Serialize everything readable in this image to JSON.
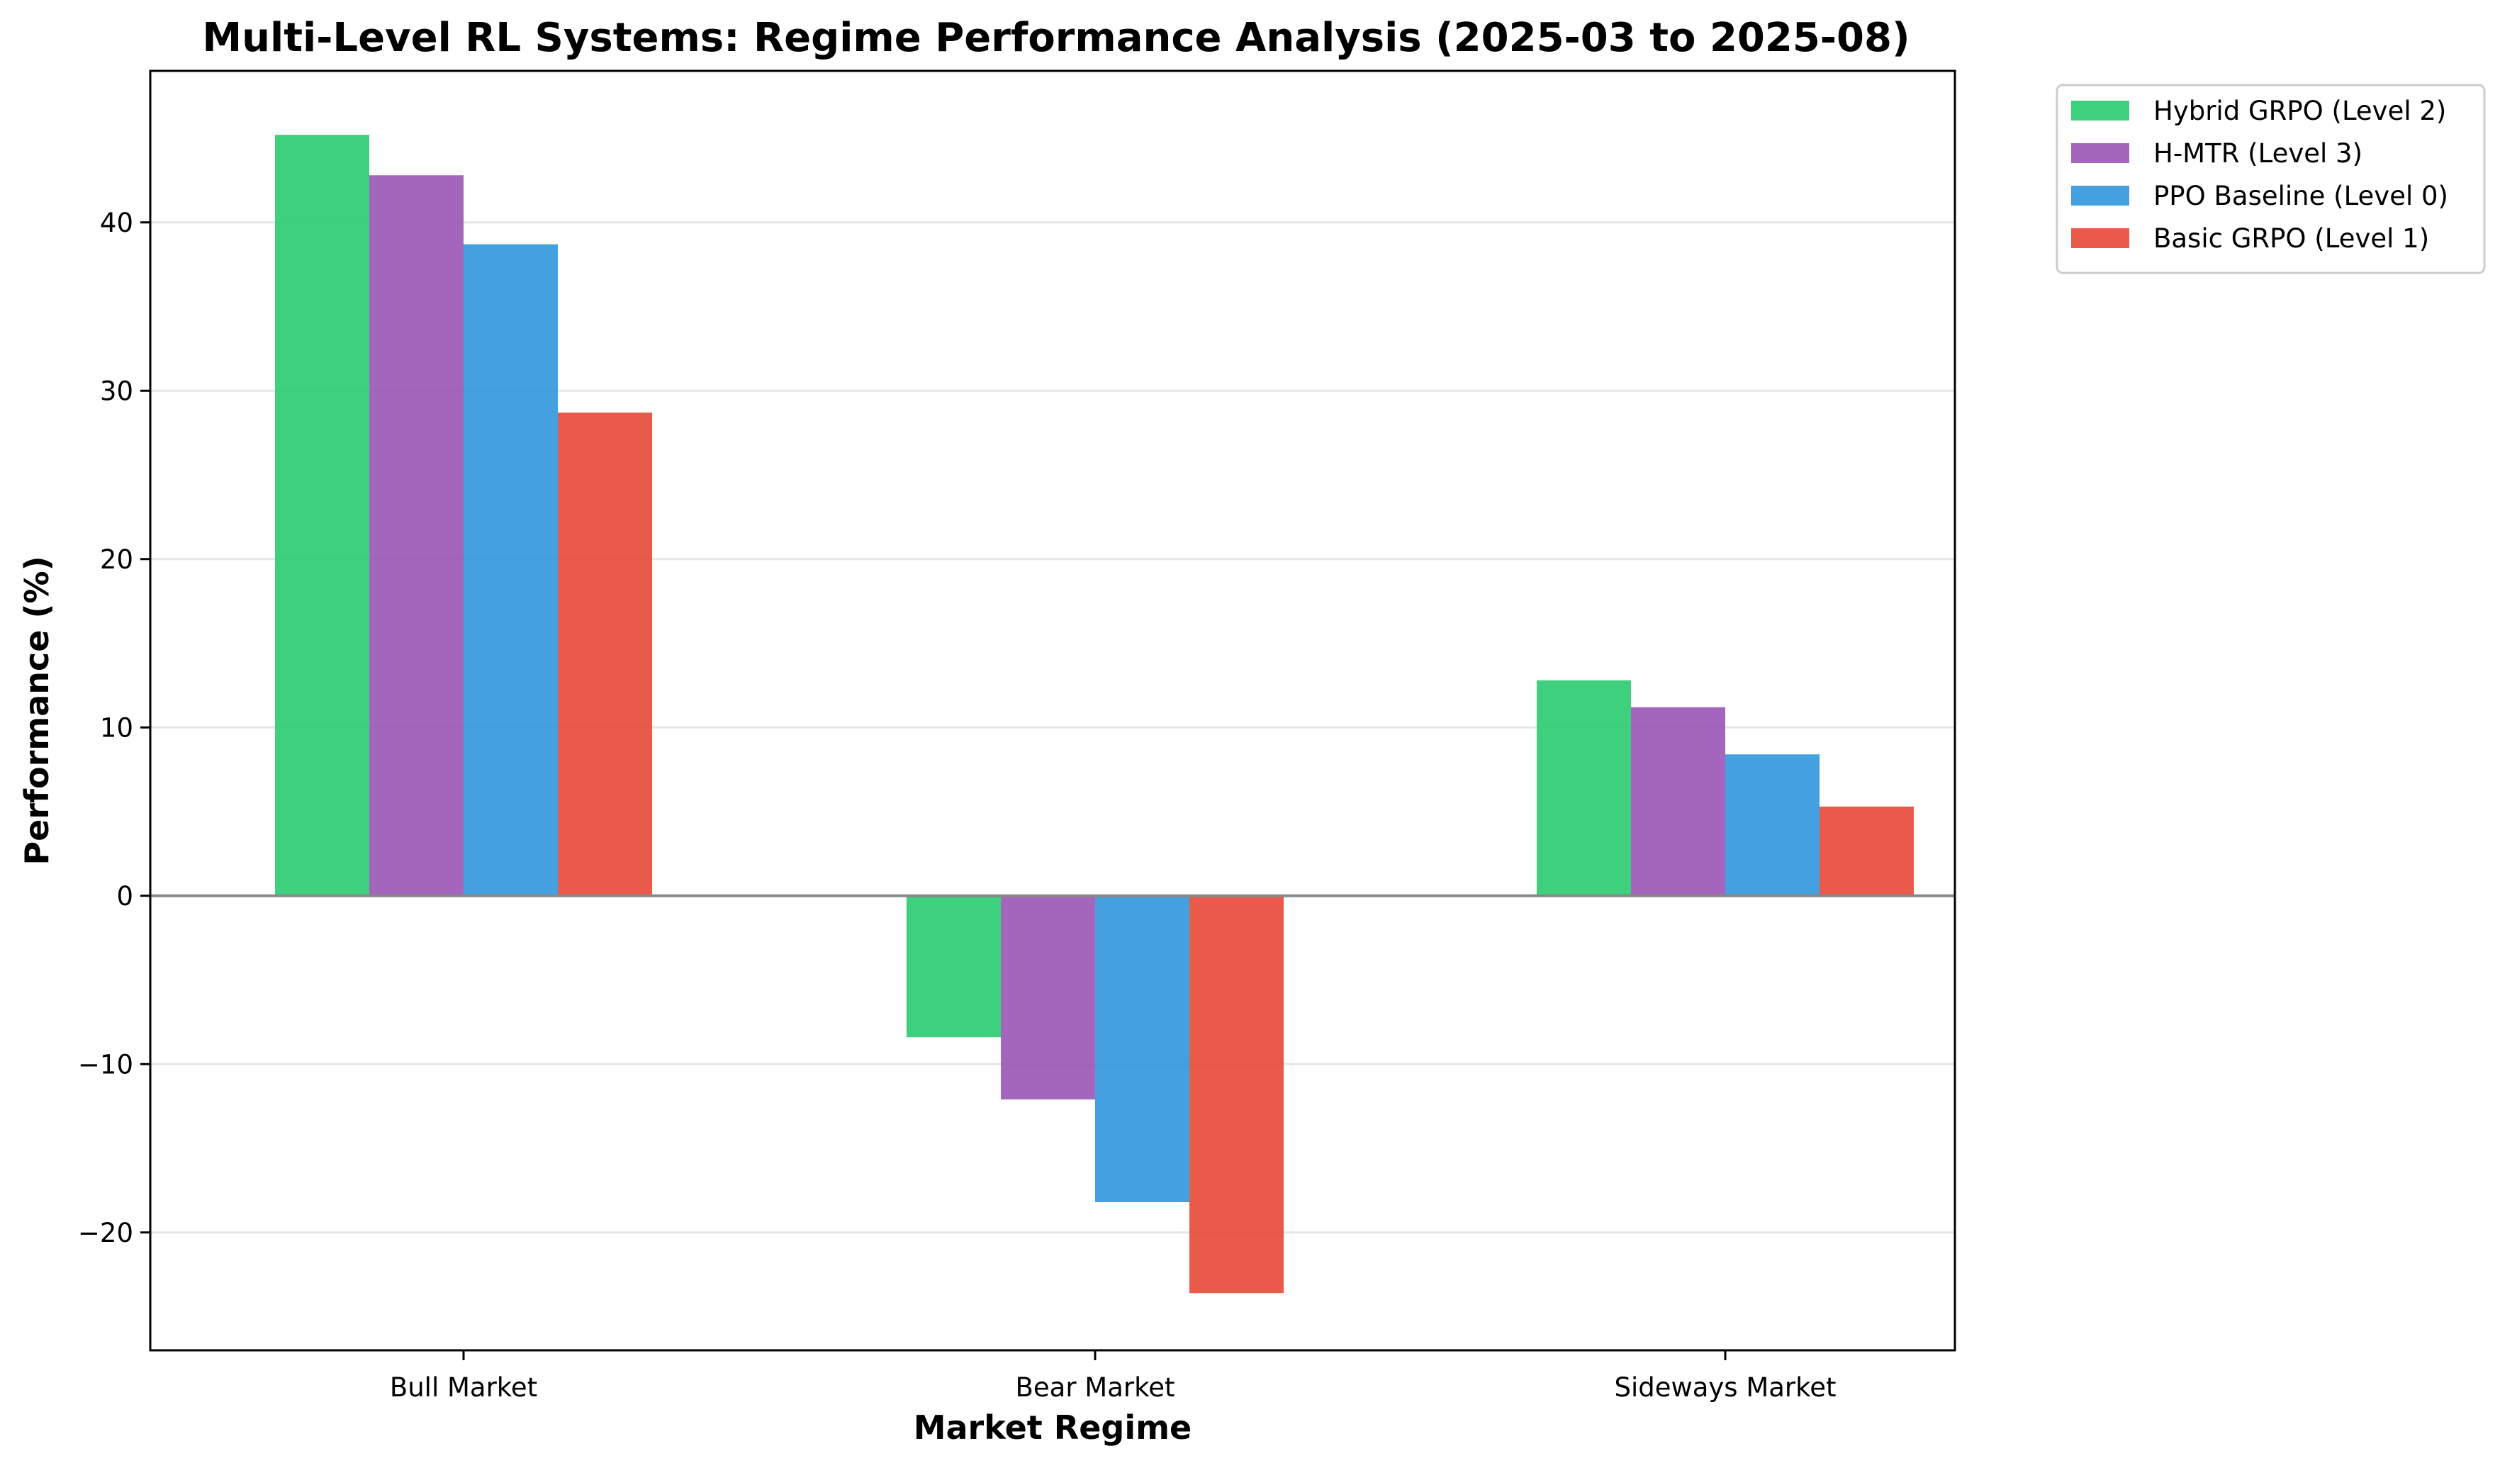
{
  "chart_data": {
    "type": "bar",
    "title": "Multi-Level RL Systems: Regime Performance Analysis (2025-03 to 2025-08)",
    "xlabel": "Market Regime",
    "ylabel": "Performance (%)",
    "categories": [
      "Bull Market",
      "Bear Market",
      "Sideways Market"
    ],
    "series": [
      {
        "name": "Hybrid GRPO (Level 2)",
        "color": "#2ecc71",
        "values": [
          45.2,
          -8.4,
          12.8
        ]
      },
      {
        "name": "H-MTR (Level 3)",
        "color": "#9b59b6",
        "values": [
          42.8,
          -12.1,
          11.2
        ]
      },
      {
        "name": "PPO Baseline (Level 0)",
        "color": "#3498db",
        "values": [
          38.7,
          -18.2,
          8.4
        ]
      },
      {
        "name": "Basic GRPO (Level 1)",
        "color": "#e74c3c",
        "values": [
          28.7,
          -23.6,
          5.3
        ]
      }
    ],
    "ylim": [
      -27,
      49
    ],
    "yticks": [
      -20,
      -10,
      0,
      10,
      20,
      30,
      40
    ],
    "ytick_labels": [
      "−20",
      "−10",
      "0",
      "10",
      "20",
      "30",
      "40"
    ],
    "grid": "horizontal",
    "legend": "outside-top-right",
    "zero_line": true
  }
}
